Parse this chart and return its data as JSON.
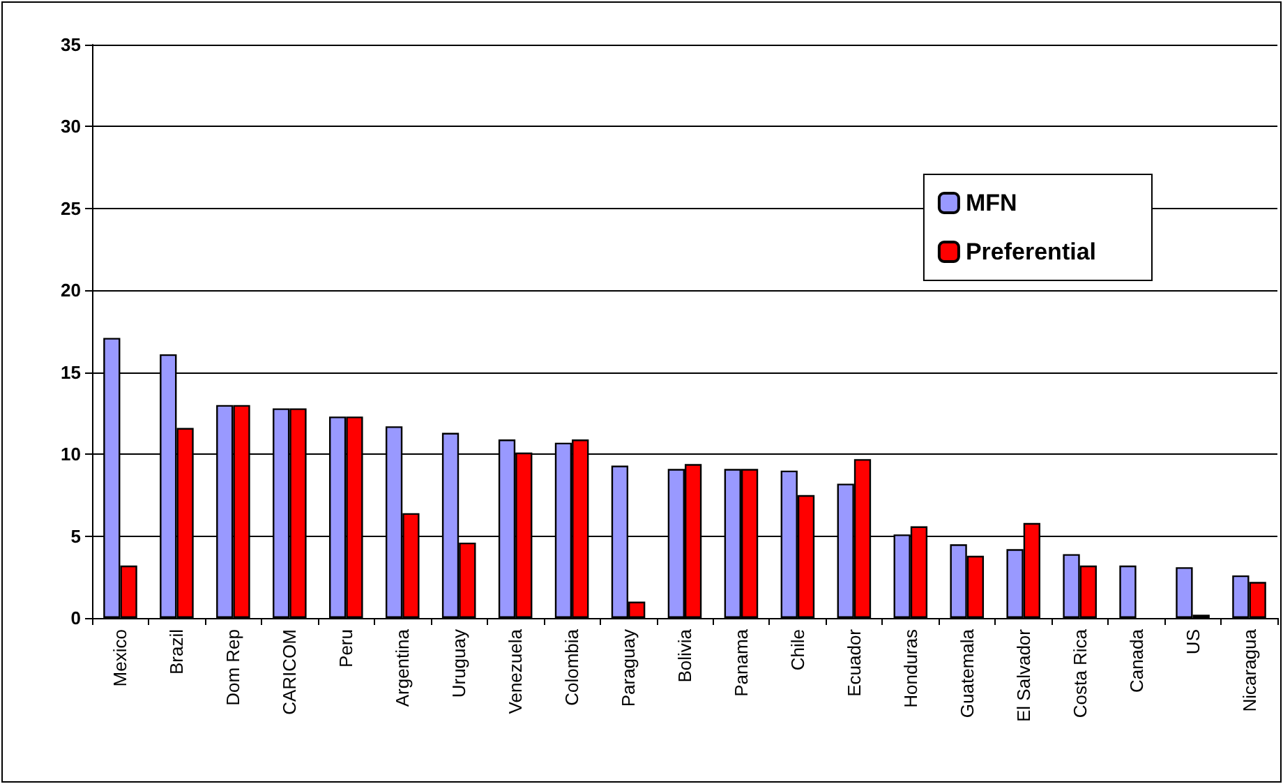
{
  "chart_data": {
    "type": "bar",
    "categories": [
      "Mexico",
      "Brazil",
      "Dom Rep",
      "CARICOM",
      "Peru",
      "Argentina",
      "Uruguay",
      "Venezuela",
      "Colombia",
      "Paraguay",
      "Bolivia",
      "Panama",
      "Chile",
      "Ecuador",
      "Honduras",
      "Guatemala",
      "El Salvador",
      "Costa Rica",
      "Canada",
      "US",
      "Nicaragua"
    ],
    "series": [
      {
        "name": "MFN",
        "color": "#9999ff",
        "values": [
          17.1,
          16.1,
          13.0,
          12.8,
          12.3,
          11.7,
          11.3,
          10.9,
          10.7,
          9.3,
          9.1,
          9.1,
          9.0,
          8.2,
          5.1,
          4.5,
          4.2,
          3.9,
          3.2,
          3.1,
          2.6
        ]
      },
      {
        "name": "Preferential",
        "color": "#ff0000",
        "values": [
          3.2,
          11.6,
          13.0,
          12.8,
          12.3,
          6.4,
          4.6,
          10.1,
          10.9,
          1.0,
          9.4,
          9.1,
          7.5,
          9.7,
          5.6,
          3.8,
          5.8,
          3.2,
          null,
          0.2,
          2.2
        ]
      }
    ],
    "ylim": [
      0,
      35
    ],
    "yticks": [
      0,
      5,
      10,
      15,
      20,
      25,
      30,
      35
    ],
    "grid": "y",
    "legend": "top right"
  }
}
